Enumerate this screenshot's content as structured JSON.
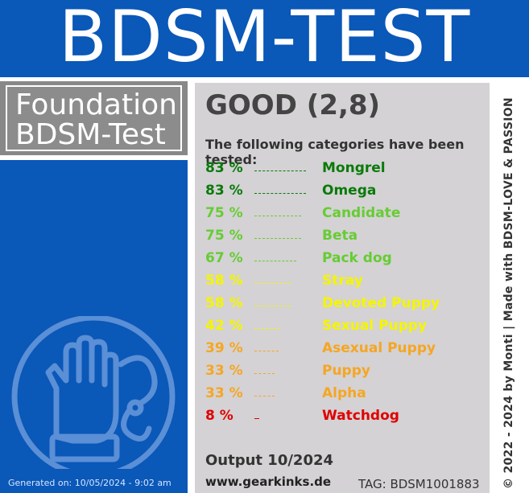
{
  "header": {
    "title": "BDSM-TEST"
  },
  "foundation": {
    "line1": "Foundation",
    "line2": "BDSM-Test"
  },
  "result": {
    "rating": "GOOD (2,8)",
    "subtitle": "The following categories have been tested:",
    "items": [
      {
        "pct": "83 %",
        "category": "Mongrel",
        "color": "#0a7a0a",
        "value": 83
      },
      {
        "pct": "83 %",
        "category": "Omega",
        "color": "#0a7a0a",
        "value": 83
      },
      {
        "pct": "75 %",
        "category": "Candidate",
        "color": "#66cc33",
        "value": 75
      },
      {
        "pct": "75 %",
        "category": "Beta",
        "color": "#66cc33",
        "value": 75
      },
      {
        "pct": "67 %",
        "category": "Pack dog",
        "color": "#66cc33",
        "value": 67
      },
      {
        "pct": "58 %",
        "category": "Stray",
        "color": "#f5f500",
        "value": 58
      },
      {
        "pct": "58 %",
        "category": "Devoted Puppy",
        "color": "#f5f500",
        "value": 58
      },
      {
        "pct": "42 %",
        "category": "Sexual Puppy",
        "color": "#f5f500",
        "value": 42
      },
      {
        "pct": "39 %",
        "category": "Asexual Puppy",
        "color": "#f5a623",
        "value": 39
      },
      {
        "pct": "33 %",
        "category": "Puppy",
        "color": "#f5a623",
        "value": 33
      },
      {
        "pct": "33 %",
        "category": "Alpha",
        "color": "#f5a623",
        "value": 33
      },
      {
        "pct": "8 %",
        "category": "Watchdog",
        "color": "#e00000",
        "value": 8
      }
    ]
  },
  "footer": {
    "output": "Output 10/2024",
    "website": "www.gearkinks.de",
    "tag": "TAG: BDSM1001883",
    "generated": "Generated on: 10/05/2024 - 9:02 am",
    "credit": "© 2022 - 2024 by Monti | Made with BDSM-LOVE & PASSION"
  },
  "colors": {
    "brand_blue": "#0a58b8",
    "panel_gray": "#d4d2d4",
    "foundation_gray": "#888888"
  },
  "icons": {
    "logo": "hand-in-handcuff-logo-icon"
  }
}
